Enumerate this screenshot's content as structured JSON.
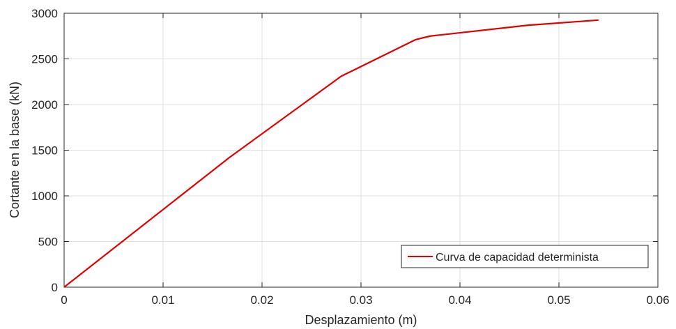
{
  "chart_data": {
    "type": "line",
    "xlabel": "Desplazamiento (m)",
    "ylabel": "Cortante en la base (kN)",
    "xlim": [
      0,
      0.06
    ],
    "ylim": [
      0,
      3000
    ],
    "xticks": [
      0,
      0.01,
      0.02,
      0.03,
      0.04,
      0.05,
      0.06
    ],
    "xtick_labels": [
      "0",
      "0.01",
      "0.02",
      "0.03",
      "0.04",
      "0.05",
      "0.06"
    ],
    "yticks": [
      0,
      500,
      1000,
      1500,
      2000,
      2500,
      3000
    ],
    "ytick_labels": [
      "0",
      "500",
      "1000",
      "1500",
      "2000",
      "2500",
      "3000"
    ],
    "grid": true,
    "legend_position": "bottom-right",
    "series": [
      {
        "name": "Curva de capacidad determinista",
        "color": "#e00000",
        "x": [
          0,
          0.0167,
          0.028,
          0.0355,
          0.037,
          0.047,
          0.054
        ],
        "y": [
          0,
          1420,
          2310,
          2710,
          2750,
          2870,
          2925
        ]
      }
    ]
  }
}
